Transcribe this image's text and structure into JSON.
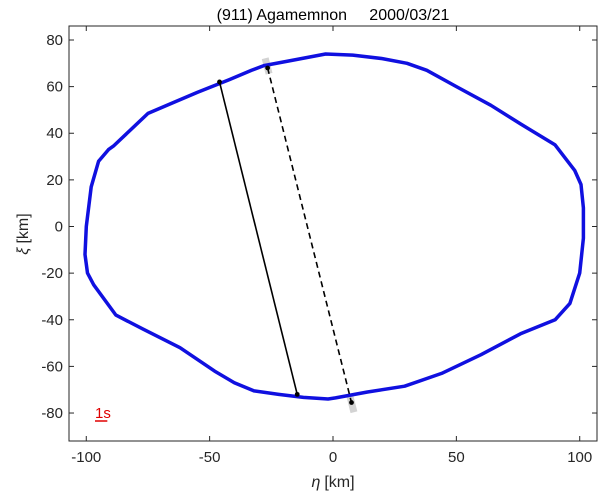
{
  "chart_data": {
    "type": "line",
    "title": "(911) Agamemnon     2000/03/21",
    "xlabel_symbol": "η",
    "xlabel_unit": "[km]",
    "ylabel_symbol": "ξ",
    "ylabel_unit": "[km]",
    "xlim": [
      -107,
      107
    ],
    "ylim": [
      -92,
      86
    ],
    "xticks": [
      -100,
      -50,
      0,
      50,
      100
    ],
    "yticks": [
      -80,
      -60,
      -40,
      -20,
      0,
      20,
      40,
      60,
      80
    ],
    "grid": false,
    "outline": {
      "color": "#1010e0",
      "x": [
        -3,
        8,
        20,
        30,
        38,
        50,
        64,
        76,
        90,
        98,
        100.5,
        101.5,
        101.5,
        100,
        96,
        90,
        76,
        60,
        44,
        29,
        14,
        1,
        -2,
        -12,
        -22,
        -32,
        -40,
        -48,
        -62,
        -77,
        -88,
        -97,
        -99.5,
        -100.5,
        -100,
        -98,
        -95,
        -91,
        -89,
        -75,
        -65,
        -55,
        -42,
        -33,
        -28,
        -18,
        -3
      ],
      "y": [
        74,
        73.5,
        72,
        70,
        67,
        60,
        52,
        44,
        35,
        24,
        18,
        8,
        -5,
        -20,
        -33,
        -40,
        -46,
        -55,
        -63,
        -68.5,
        -71,
        -73.5,
        -74,
        -73.3,
        -72,
        -70.5,
        -67,
        -62,
        -52,
        -44,
        -38,
        -25,
        -20,
        -12,
        0,
        17,
        28,
        33,
        34.5,
        48.5,
        53,
        57.5,
        63,
        67,
        69,
        71,
        74
      ]
    },
    "chords": [
      {
        "style": "solid",
        "color": "#000000",
        "start": [
          -46,
          62
        ],
        "end": [
          -14.5,
          -72
        ]
      },
      {
        "style": "dashed",
        "color": "#000000",
        "start": [
          -26.5,
          68
        ],
        "end": [
          7.5,
          -75.5
        ],
        "uncertainty_color": "#d3d3d3"
      }
    ],
    "scale_bar": {
      "label": "1s",
      "color": "#e00000",
      "length_km": 5
    }
  }
}
